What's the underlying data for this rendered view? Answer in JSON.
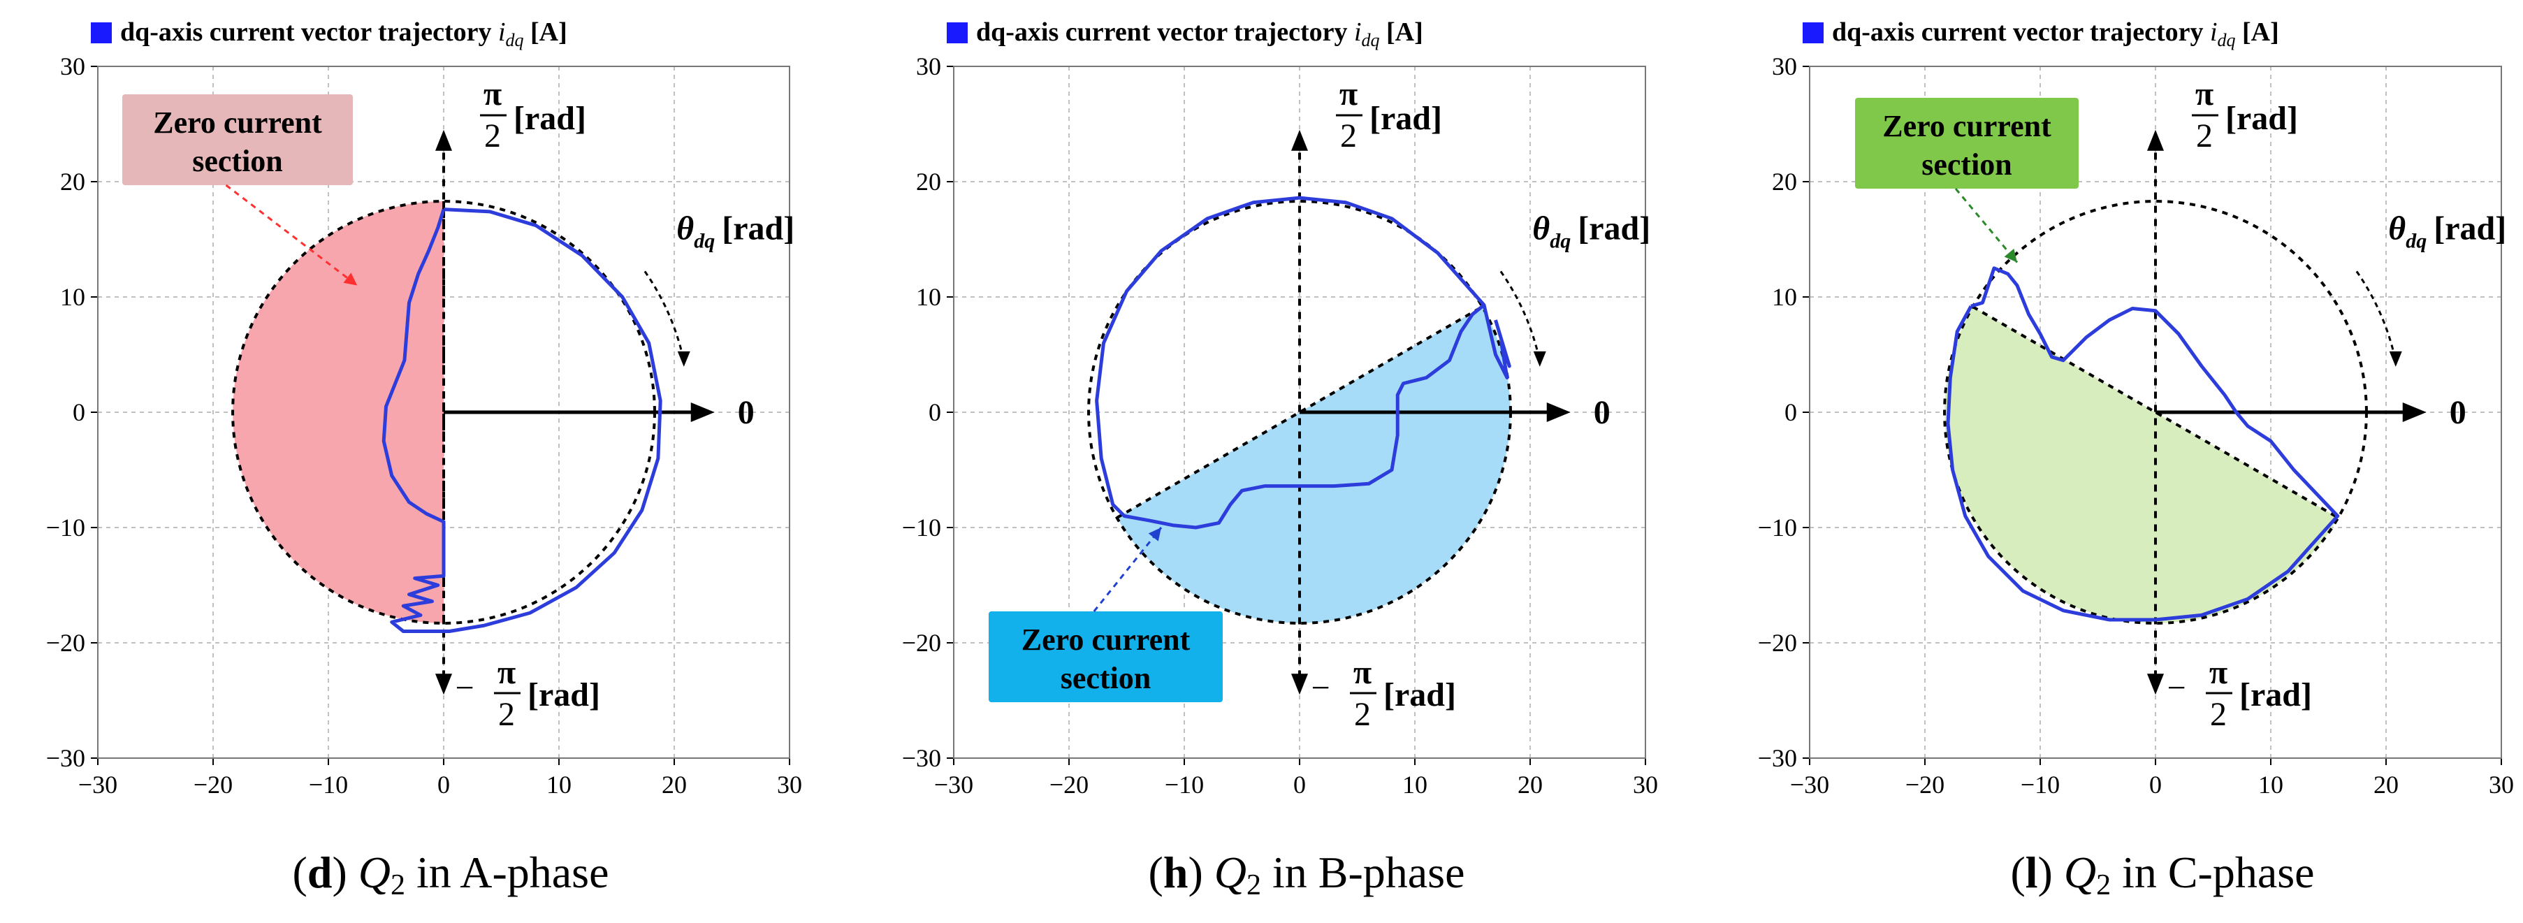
{
  "figure": {
    "panels": [
      {
        "id": "d",
        "legend": {
          "marker_color": "#1a1aff",
          "label": "dq-axis current vector trajectory ",
          "symbol": "i",
          "subscript": "dq",
          "unit": " [A]"
        },
        "caption": {
          "letter": "d",
          "open": "(",
          "close": ")",
          "var": "Q",
          "sub": "2",
          "rest": " in A-phase"
        },
        "axis_labels": {
          "top_num": "π",
          "top_den": "2",
          "top_unit": "[rad]",
          "bottom_sign": "−",
          "bottom_num": "π",
          "bottom_den": "2",
          "bottom_unit": "[rad]",
          "right": "0",
          "theta": "θ",
          "theta_sub": "dq",
          "theta_unit": "[rad]"
        },
        "callout": {
          "line1": "Zero current",
          "line2": "section"
        }
      },
      {
        "id": "h",
        "legend": {
          "marker_color": "#1a1aff",
          "label": "dq-axis current vector trajectory ",
          "symbol": "i",
          "subscript": "dq",
          "unit": " [A]"
        },
        "caption": {
          "letter": "h",
          "open": "(",
          "close": ")",
          "var": "Q",
          "sub": "2",
          "rest": " in B-phase"
        },
        "axis_labels": {
          "top_num": "π",
          "top_den": "2",
          "top_unit": "[rad]",
          "bottom_sign": "−",
          "bottom_num": "π",
          "bottom_den": "2",
          "bottom_unit": "[rad]",
          "right": "0",
          "theta": "θ",
          "theta_sub": "dq",
          "theta_unit": "[rad]"
        },
        "callout": {
          "line1": "Zero current",
          "line2": "section"
        }
      },
      {
        "id": "l",
        "legend": {
          "marker_color": "#1a1aff",
          "label": "dq-axis current vector trajectory ",
          "symbol": "i",
          "subscript": "dq",
          "unit": " [A]"
        },
        "caption": {
          "letter": "l",
          "open": "(",
          "close": ")",
          "var": "Q",
          "sub": "2",
          "rest": " in C-phase"
        },
        "axis_labels": {
          "top_num": "π",
          "top_den": "2",
          "top_unit": "[rad]",
          "bottom_sign": "−",
          "bottom_num": "π",
          "bottom_den": "2",
          "bottom_unit": "[rad]",
          "right": "0",
          "theta": "θ",
          "theta_sub": "dq",
          "theta_unit": "[rad]"
        },
        "callout": {
          "line1": "Zero current",
          "line2": "section"
        }
      }
    ],
    "colors": {
      "trajectory": "#2d3ddb",
      "axis": "#000000",
      "grid": "#c0c0c0",
      "circle": "#000000"
    }
  },
  "chart_data": [
    {
      "type": "scatter",
      "title": "",
      "xlim": [
        -30,
        30
      ],
      "ylim": [
        -30,
        30
      ],
      "xticks": [
        -30,
        -20,
        -10,
        0,
        10,
        20,
        30
      ],
      "yticks": [
        -30,
        -20,
        -10,
        0,
        10,
        20,
        30
      ],
      "grid": true,
      "reference_circle_radius": 18.3,
      "zero_section": {
        "from_angle_deg": 90,
        "to_angle_deg": 270,
        "fill": "#f7a6ad",
        "label_fill": "#e5b7b9"
      },
      "series": [
        {
          "points": [
            [
              0,
              17.6
            ],
            [
              4,
              17.4
            ],
            [
              8,
              16.2
            ],
            [
              12,
              13.6
            ],
            [
              15.5,
              10
            ],
            [
              17.8,
              6
            ],
            [
              18.8,
              1
            ],
            [
              18.6,
              -4
            ],
            [
              17.2,
              -8.5
            ],
            [
              14.8,
              -12.2
            ],
            [
              11.5,
              -15.2
            ],
            [
              7.5,
              -17.4
            ],
            [
              3.5,
              -18.5
            ],
            [
              0.5,
              -19
            ],
            [
              -0.5,
              -19
            ],
            [
              -3.5,
              -19
            ],
            [
              -4.5,
              -18.2
            ],
            [
              -2,
              -17.6
            ],
            [
              -3.5,
              -16.8
            ],
            [
              -1,
              -16.4
            ],
            [
              -3,
              -15.8
            ],
            [
              -0.5,
              -15
            ],
            [
              -2.5,
              -14.4
            ],
            [
              0,
              -14.2
            ],
            [
              0,
              -9.5
            ],
            [
              -1.5,
              -8.8
            ],
            [
              -3,
              -7.8
            ],
            [
              -4.5,
              -5.5
            ],
            [
              -5.2,
              -2.5
            ],
            [
              -5,
              0.5
            ],
            [
              -4.2,
              2.5
            ],
            [
              -3.4,
              4.5
            ],
            [
              -3.2,
              7
            ],
            [
              -3,
              9.5
            ],
            [
              -2.2,
              12
            ],
            [
              -1.3,
              14
            ],
            [
              -0.5,
              16
            ],
            [
              0,
              17.6
            ]
          ]
        }
      ],
      "annotations": [
        "Zero current section",
        "π/2 [rad]",
        "−π/2 [rad]",
        "0",
        "θdq [rad]"
      ]
    },
    {
      "type": "scatter",
      "title": "",
      "xlim": [
        -30,
        30
      ],
      "ylim": [
        -30,
        30
      ],
      "xticks": [
        -30,
        -20,
        -10,
        0,
        10,
        20,
        30
      ],
      "yticks": [
        -30,
        -20,
        -10,
        0,
        10,
        20,
        30
      ],
      "grid": true,
      "reference_circle_radius": 18.3,
      "zero_section": {
        "from_angle_deg": 210,
        "to_angle_deg": 390,
        "fill": "#a6dcf7",
        "label_fill": "#12b1ec"
      },
      "series": [
        {
          "points": [
            [
              16,
              9.3
            ],
            [
              12,
              13.8
            ],
            [
              8,
              16.8
            ],
            [
              4,
              18.2
            ],
            [
              0,
              18.6
            ],
            [
              -4,
              18.2
            ],
            [
              -8,
              16.8
            ],
            [
              -12,
              14
            ],
            [
              -15,
              10.5
            ],
            [
              -17,
              6
            ],
            [
              -17.6,
              1
            ],
            [
              -17.2,
              -4
            ],
            [
              -16.2,
              -8
            ],
            [
              -15.2,
              -9
            ],
            [
              -13,
              -9.4
            ],
            [
              -11,
              -9.8
            ],
            [
              -9,
              -10
            ],
            [
              -7,
              -9.6
            ],
            [
              -6,
              -8
            ],
            [
              -5,
              -6.8
            ],
            [
              -3,
              -6.4
            ],
            [
              0,
              -6.4
            ],
            [
              3,
              -6.4
            ],
            [
              6,
              -6.2
            ],
            [
              8,
              -5
            ],
            [
              8.5,
              -2
            ],
            [
              8.5,
              1.5
            ],
            [
              9,
              2.5
            ],
            [
              11,
              3
            ],
            [
              13,
              4.5
            ],
            [
              14,
              7
            ],
            [
              15,
              8.5
            ],
            [
              16,
              9.3
            ],
            [
              17,
              5
            ],
            [
              18,
              3
            ],
            [
              17.5,
              6
            ],
            [
              18.2,
              4
            ],
            [
              17,
              8
            ]
          ]
        }
      ],
      "annotations": [
        "Zero current section",
        "π/2 [rad]",
        "−π/2 [rad]",
        "0",
        "θdq [rad]"
      ]
    },
    {
      "type": "scatter",
      "title": "",
      "xlim": [
        -30,
        30
      ],
      "ylim": [
        -30,
        30
      ],
      "xticks": [
        -30,
        -20,
        -10,
        0,
        10,
        20,
        30
      ],
      "yticks": [
        -30,
        -20,
        -10,
        0,
        10,
        20,
        30
      ],
      "grid": true,
      "reference_circle_radius": 18.3,
      "zero_section": {
        "from_angle_deg": 150,
        "to_angle_deg": 330,
        "fill": "#d8edbd",
        "label_fill": "#7fc84a"
      },
      "series": [
        {
          "points": [
            [
              -16,
              9.2
            ],
            [
              -17.2,
              7
            ],
            [
              -17.8,
              3
            ],
            [
              -18,
              -1
            ],
            [
              -17.6,
              -5
            ],
            [
              -16.5,
              -9
            ],
            [
              -14.5,
              -12.5
            ],
            [
              -11.5,
              -15.5
            ],
            [
              -8,
              -17.2
            ],
            [
              -4,
              -18
            ],
            [
              0,
              -18
            ],
            [
              4,
              -17.6
            ],
            [
              8,
              -16.2
            ],
            [
              11.5,
              -13.8
            ],
            [
              14,
              -11
            ],
            [
              15.8,
              -9
            ],
            [
              12,
              -5
            ],
            [
              10,
              -2.5
            ],
            [
              8,
              -1.2
            ],
            [
              7,
              0
            ],
            [
              6,
              1.5
            ],
            [
              4,
              4
            ],
            [
              2,
              6.8
            ],
            [
              0,
              8.8
            ],
            [
              -2,
              9
            ],
            [
              -4,
              8
            ],
            [
              -6,
              6.5
            ],
            [
              -8,
              4.5
            ],
            [
              -9,
              4.8
            ],
            [
              -10,
              6.8
            ],
            [
              -11,
              8.5
            ],
            [
              -12,
              11
            ],
            [
              -12.8,
              12
            ],
            [
              -14,
              12.5
            ],
            [
              -15,
              9.5
            ],
            [
              -16,
              9.2
            ]
          ]
        }
      ],
      "annotations": [
        "Zero current section",
        "π/2 [rad]",
        "−π/2 [rad]",
        "0",
        "θdq [rad]"
      ]
    }
  ]
}
